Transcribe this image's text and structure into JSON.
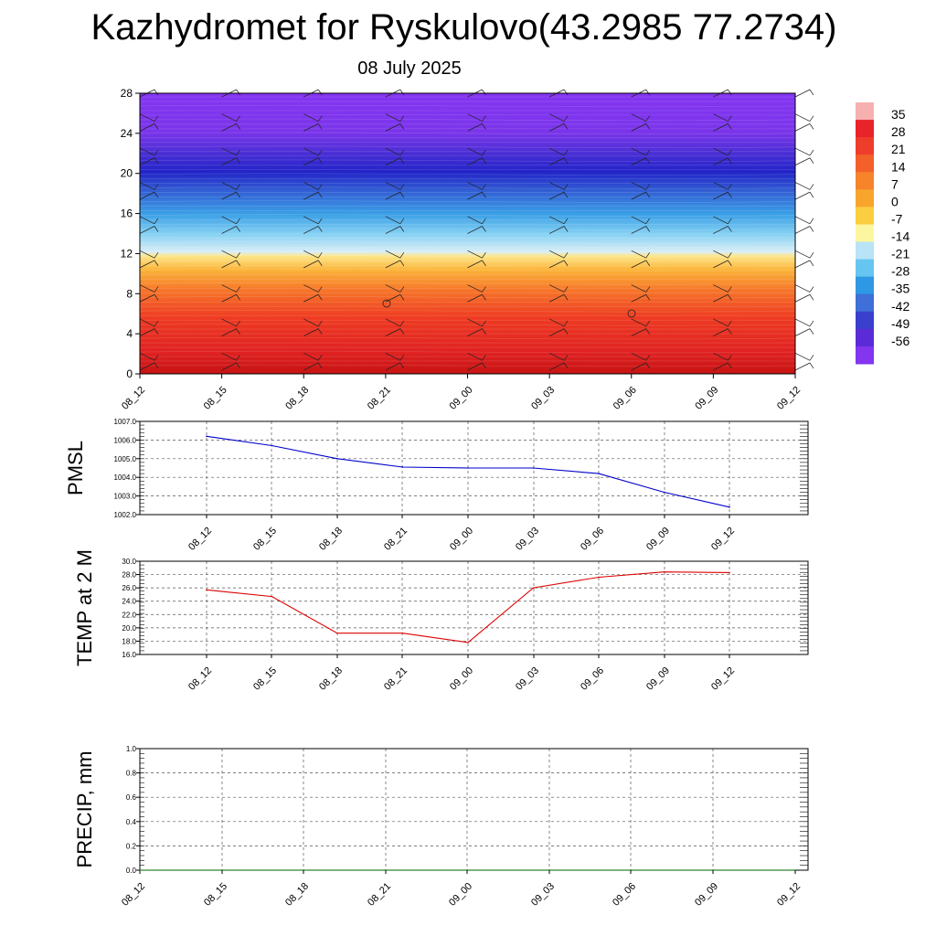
{
  "header": {
    "title": "Kazhydromet for Ryskulovo(43.2985 77.2734)",
    "date": "08 July 2025"
  },
  "chart_data": [
    {
      "type": "heatmap",
      "name": "temperature-cross-section",
      "title": "Kazhydromet for Ryskulovo(43.2985 77.2734)",
      "subtitle": "08 July 2025",
      "x_categories": [
        "08_12",
        "08_15",
        "08_18",
        "08_21",
        "09_00",
        "09_03",
        "09_06",
        "09_09",
        "09_12"
      ],
      "y_ticks": [
        0,
        4,
        8,
        12,
        16,
        20,
        24,
        28
      ],
      "ylim": [
        0,
        28
      ],
      "colorbar_labels": [
        "35",
        "28",
        "21",
        "14",
        "7",
        "0",
        "-7",
        "-14",
        "-21",
        "-28",
        "-35",
        "-42",
        "-49",
        "-56"
      ],
      "colorbar_colors": [
        "#f7b0b0",
        "#e8242a",
        "#ee3d2a",
        "#f3602a",
        "#f6842a",
        "#f8a52e",
        "#fbcd40",
        "#fdf6a0",
        "#b9e3f7",
        "#66c6f1",
        "#2f98e4",
        "#3f6fd7",
        "#3a3fcd",
        "#5a2bd6",
        "#8335f0"
      ],
      "wind_barbs": true
    },
    {
      "type": "line",
      "name": "pmsl",
      "ylabel": "PMSL",
      "categories": [
        "08_12",
        "08_15",
        "08_18",
        "08_21",
        "09_00",
        "09_03",
        "09_06",
        "09_09",
        "09_12"
      ],
      "values": [
        1006.2,
        1005.7,
        1005.0,
        1004.55,
        1004.5,
        1004.5,
        1004.2,
        1003.2,
        1002.4
      ],
      "y_ticks": [
        "1002.0",
        "1003.0",
        "1004.0",
        "1005.0",
        "1006.0",
        "1007.0"
      ],
      "ylim": [
        1002.0,
        1007.0
      ],
      "color": "#0000cc",
      "grid": true
    },
    {
      "type": "line",
      "name": "temp-2m",
      "ylabel": "TEMP at 2 M",
      "categories": [
        "08_12",
        "08_15",
        "08_18",
        "08_21",
        "09_00",
        "09_03",
        "09_06",
        "09_09",
        "09_12"
      ],
      "values": [
        25.7,
        24.7,
        19.2,
        19.2,
        17.8,
        26.0,
        27.6,
        28.4,
        28.3
      ],
      "y_ticks": [
        "16.0",
        "18.0",
        "20.0",
        "22.0",
        "24.0",
        "26.0",
        "28.0",
        "30.0"
      ],
      "ylim": [
        16.0,
        30.0
      ],
      "color": "#dd0000",
      "grid": true
    },
    {
      "type": "line",
      "name": "precip",
      "ylabel": "PRECIP, mm",
      "categories": [
        "08_12",
        "08_15",
        "08_18",
        "08_21",
        "09_00",
        "09_03",
        "09_06",
        "09_09",
        "09_12"
      ],
      "values": [
        0,
        0,
        0,
        0,
        0,
        0,
        0,
        0,
        0
      ],
      "y_ticks": [
        "0.0",
        "0.2",
        "0.4",
        "0.6",
        "0.8",
        "1.0"
      ],
      "ylim": [
        0.0,
        1.0
      ],
      "color": "#006600",
      "grid": true
    }
  ]
}
